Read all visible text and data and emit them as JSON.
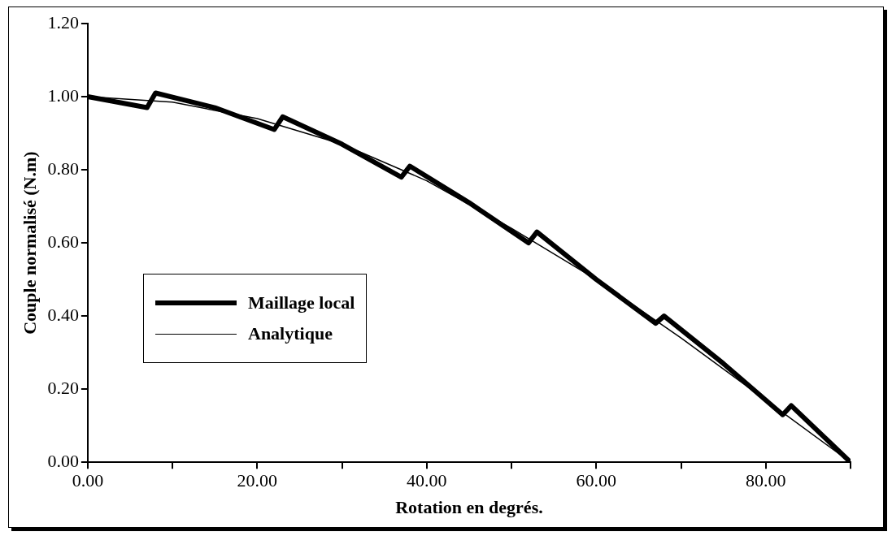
{
  "chart_data": {
    "type": "line",
    "xlabel": "Rotation en degrés.",
    "ylabel": "Couple normalisé (N.m)",
    "xlim": [
      0,
      90
    ],
    "xticks": [
      "0.00",
      {
        "value": 10,
        "label": null
      },
      {
        "value": 20,
        "label": "20.00"
      },
      {
        "value": 30,
        "label": null
      },
      {
        "value": 40,
        "label": "40.00"
      },
      {
        "value": 50,
        "label": null
      },
      {
        "value": 60,
        "label": "60.00"
      },
      {
        "value": 70,
        "label": null
      },
      {
        "value": 80,
        "label": "80.00"
      },
      {
        "value": 90,
        "label": null
      }
    ],
    "ylim": [
      0,
      1.2
    ],
    "yticks": [
      {
        "value": 0,
        "label": "0.00"
      },
      {
        "value": 0.2,
        "label": "0.20"
      },
      {
        "value": 0.4,
        "label": "0.40"
      },
      {
        "value": 0.6,
        "label": "0.60"
      },
      {
        "value": 0.8,
        "label": "0.80"
      },
      {
        "value": 1,
        "label": "1.00"
      },
      {
        "value": 1.2,
        "label": "1.20"
      }
    ],
    "grid": false,
    "legend": "left",
    "marker": "none",
    "series": [
      {
        "name": "Maillage local",
        "color": "#000000",
        "x": [
          0,
          7,
          8,
          15,
          22,
          23,
          30,
          37,
          38,
          45,
          52,
          53,
          60,
          67,
          68,
          75,
          82,
          83,
          90
        ],
        "values": [
          1.0,
          0.97,
          1.01,
          0.97,
          0.91,
          0.945,
          0.87,
          0.78,
          0.81,
          0.71,
          0.6,
          0.63,
          0.5,
          0.38,
          0.4,
          0.27,
          0.13,
          0.155,
          0.0
        ]
      },
      {
        "name": "Analytique",
        "color": "#000000",
        "x": [
          0,
          10,
          20,
          30,
          40,
          50,
          60,
          70,
          80,
          90
        ],
        "values": [
          1.0,
          0.985,
          0.94,
          0.87,
          0.77,
          0.64,
          0.5,
          0.34,
          0.17,
          0.0
        ]
      }
    ]
  }
}
